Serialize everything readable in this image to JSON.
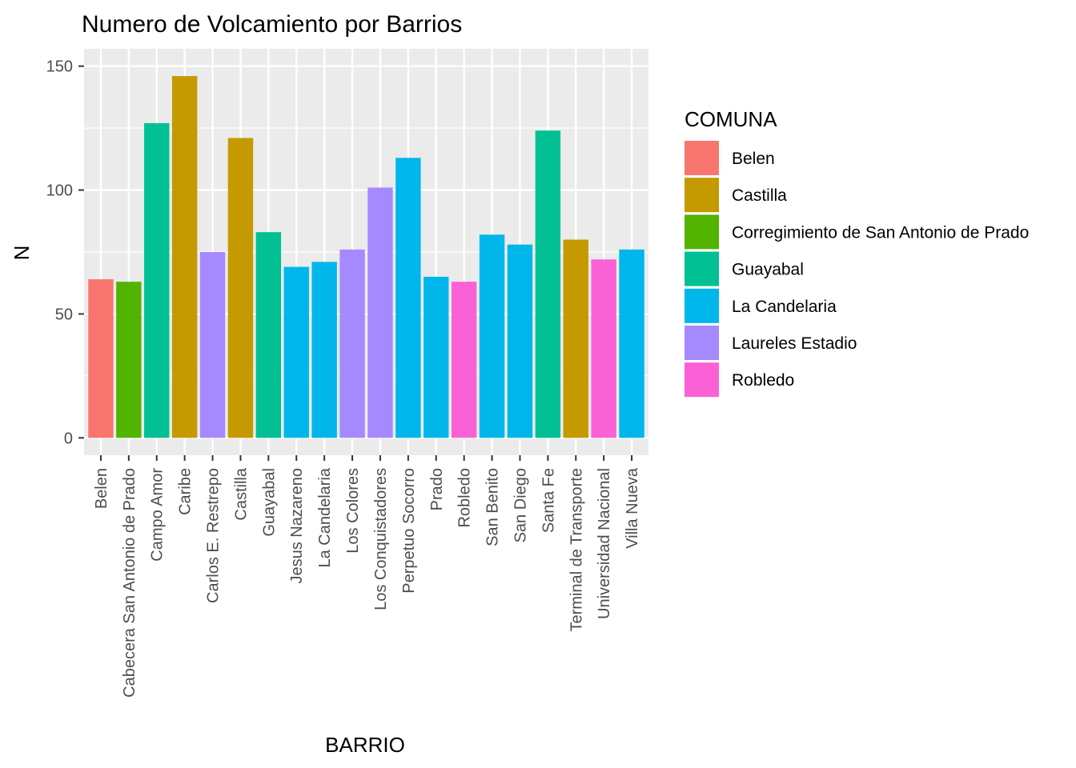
{
  "chart_data": {
    "type": "bar",
    "title": "Numero de  Volcamiento por Barrios",
    "xlabel": "BARRIO",
    "ylabel": "N",
    "ylim": [
      -7,
      157
    ],
    "yticks": [
      0,
      50,
      100,
      150
    ],
    "grid": true,
    "legend_position": "right",
    "legend_title": "COMUNA",
    "legend": [
      {
        "name": "Belen",
        "color": "#F8766D"
      },
      {
        "name": "Castilla",
        "color": "#C49A00"
      },
      {
        "name": "Corregimiento de San Antonio de Prado",
        "color": "#53B400"
      },
      {
        "name": "Guayabal",
        "color": "#00C094"
      },
      {
        "name": "La Candelaria",
        "color": "#00B6EB"
      },
      {
        "name": "Laureles Estadio",
        "color": "#A58AFF"
      },
      {
        "name": "Robledo",
        "color": "#FB61D7"
      }
    ],
    "categories": [
      "Belen",
      "Cabecera San Antonio de Prado",
      "Campo Amor",
      "Caribe",
      "Carlos E. Restrepo",
      "Castilla",
      "Guayabal",
      "Jesus Nazareno",
      "La Candelaria",
      "Los Colores",
      "Los Conquistadores",
      "Perpetuo Socorro",
      "Prado",
      "Robledo",
      "San Benito",
      "San Diego",
      "Santa Fe",
      "Terminal de Transporte",
      "Universidad Nacional",
      "Villa Nueva"
    ],
    "values": [
      64,
      63,
      127,
      146,
      75,
      121,
      83,
      69,
      71,
      76,
      101,
      113,
      65,
      63,
      82,
      78,
      124,
      80,
      72,
      76
    ],
    "comuna": [
      "Belen",
      "Corregimiento de San Antonio de Prado",
      "Guayabal",
      "Castilla",
      "Laureles Estadio",
      "Castilla",
      "Guayabal",
      "La Candelaria",
      "La Candelaria",
      "Laureles Estadio",
      "Laureles Estadio",
      "La Candelaria",
      "La Candelaria",
      "Robledo",
      "La Candelaria",
      "La Candelaria",
      "Guayabal",
      "Castilla",
      "Robledo",
      "La Candelaria"
    ]
  }
}
